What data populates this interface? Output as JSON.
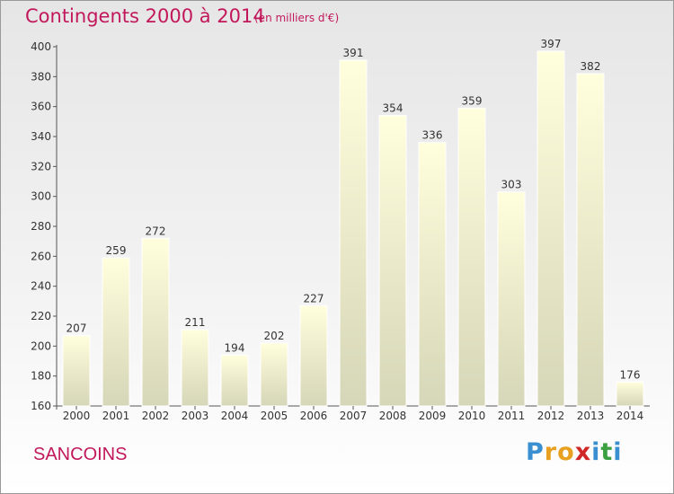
{
  "title": "Contingents 2000 à 2014",
  "subtitle": "(en milliers d'€)",
  "commune": "SANCOINS",
  "brand": {
    "letters": [
      "P",
      "r",
      "o",
      "x",
      "i",
      "t",
      "i"
    ],
    "colors": [
      "#3a8fd0",
      "#e8a020",
      "#e8a020",
      "#d02828",
      "#3a8fd0",
      "#3aa040",
      "#3a8fd0"
    ]
  },
  "colors": {
    "title": "#c2185b",
    "bar_top": "#ffffdd",
    "bar_bottom": "#d6d6b8"
  },
  "chart_data": {
    "type": "bar",
    "categories": [
      "2000",
      "2001",
      "2002",
      "2003",
      "2004",
      "2005",
      "2006",
      "2007",
      "2008",
      "2009",
      "2010",
      "2011",
      "2012",
      "2013",
      "2014"
    ],
    "values": [
      207,
      259,
      272,
      211,
      194,
      202,
      227,
      391,
      354,
      336,
      359,
      303,
      397,
      382,
      176
    ],
    "title": "Contingents 2000 à 2014",
    "xlabel": "",
    "ylabel": "",
    "ylim": [
      160,
      400
    ],
    "yticks": [
      160,
      180,
      200,
      220,
      240,
      260,
      280,
      300,
      320,
      340,
      360,
      380,
      400
    ],
    "grid": false,
    "data_labels": true
  }
}
